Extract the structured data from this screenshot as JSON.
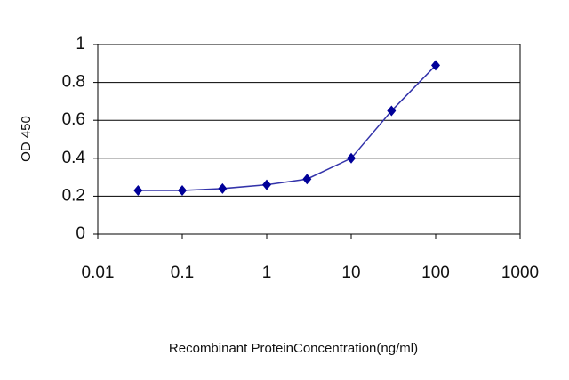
{
  "chart_data": {
    "type": "line",
    "xlabel": "Recombinant ProteinConcentration(ng/ml)",
    "ylabel": "OD 450",
    "x": [
      0.03,
      0.1,
      0.3,
      1,
      3,
      10,
      30,
      100
    ],
    "series": [
      {
        "color": "#3333aa",
        "marker_color": "#000099",
        "values": [
          0.23,
          0.23,
          0.24,
          0.26,
          0.29,
          0.4,
          0.65,
          0.89
        ]
      }
    ],
    "xscale": "log",
    "xlim": [
      0.01,
      1000
    ],
    "xticks": [
      0.01,
      0.1,
      1,
      10,
      100,
      1000
    ],
    "ylim": [
      0,
      1
    ],
    "yticks": [
      0,
      0.2,
      0.4,
      0.6,
      0.8,
      1
    ],
    "grid": true
  }
}
